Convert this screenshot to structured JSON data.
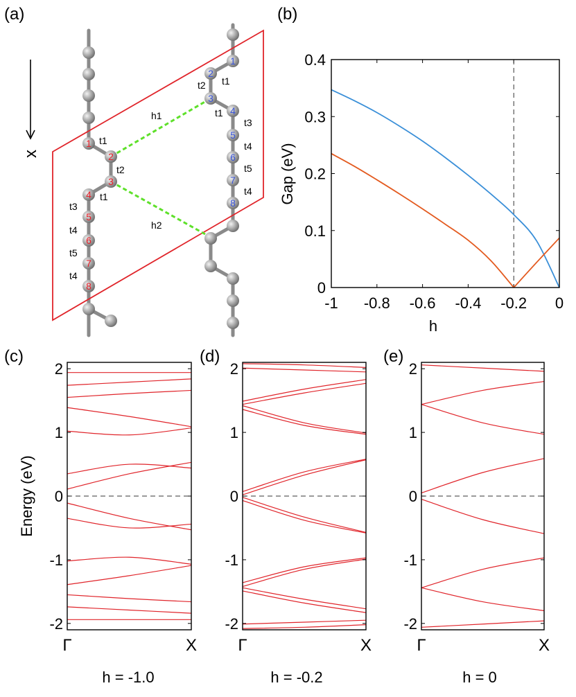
{
  "panels": {
    "a": {
      "label": "(a)",
      "axis_label": "x",
      "red_sites": [
        "1",
        "2",
        "3",
        "4",
        "5",
        "6",
        "7",
        "8"
      ],
      "blue_sites": [
        "1",
        "2",
        "3",
        "4",
        "5",
        "6",
        "7",
        "8"
      ],
      "hop_labels": {
        "red_t1a": "t1",
        "red_t2": "t2",
        "red_t1b": "t1",
        "red_t3": "t3",
        "red_t4a": "t4",
        "red_t5": "t5",
        "red_t4b": "t4",
        "blue_t1a": "t1",
        "blue_t2": "t2",
        "blue_t1b": "t1",
        "blue_t3": "t3",
        "blue_t4a": "t4",
        "blue_t5": "t5",
        "blue_t4b": "t4"
      },
      "interchain": {
        "h1": "h1",
        "h2": "h2"
      },
      "colors": {
        "red_site": "#e8202a",
        "blue_site": "#3a55d8",
        "plane": "#e0242a",
        "bond_dash": "#5ee02a",
        "atom": "#9a9a9a"
      }
    },
    "b": {
      "label": "(b)",
      "xlabel": "h",
      "ylabel": "Gap (eV)",
      "xticks": [
        "-1",
        "-0.8",
        "-0.6",
        "-0.4",
        "-0.2",
        "0"
      ],
      "yticks": [
        "0",
        "0.1",
        "0.2",
        "0.3",
        "0.4"
      ]
    },
    "c": {
      "label": "(c)",
      "caption": "h = -1.0"
    },
    "d": {
      "label": "(d)",
      "caption": "h = -0.2"
    },
    "e": {
      "label": "(e)",
      "caption": "h = 0"
    },
    "band_axes": {
      "ylabel": "Energy (eV)",
      "yticks": [
        "-2",
        "-1",
        "0",
        "1",
        "2"
      ],
      "xticks": [
        "Γ",
        "X"
      ]
    }
  },
  "chart_data": [
    {
      "type": "line",
      "panel": "b",
      "title": "",
      "xlabel": "h",
      "ylabel": "Gap (eV)",
      "xlim": [
        -1,
        0
      ],
      "ylim": [
        0,
        0.4
      ],
      "vline_x": -0.2,
      "series": [
        {
          "name": "gap-blue",
          "color": "#3a8fd8",
          "x": [
            -1,
            -0.9,
            -0.8,
            -0.7,
            -0.6,
            -0.5,
            -0.4,
            -0.3,
            -0.2,
            -0.1,
            0
          ],
          "y": [
            0.347,
            0.328,
            0.307,
            0.283,
            0.257,
            0.228,
            0.197,
            0.164,
            0.128,
            0.082,
            0.0
          ]
        },
        {
          "name": "gap-orange",
          "color": "#e35a1f",
          "x": [
            -1,
            -0.9,
            -0.8,
            -0.7,
            -0.6,
            -0.5,
            -0.4,
            -0.3,
            -0.2,
            -0.1,
            0
          ],
          "y": [
            0.235,
            0.213,
            0.189,
            0.164,
            0.138,
            0.111,
            0.083,
            0.047,
            0.0,
            0.044,
            0.087
          ]
        }
      ]
    },
    {
      "type": "line",
      "panel": "c",
      "caption": "h = -1.0",
      "ylabel": "Energy (eV)",
      "ylim": [
        -2.1,
        2.1
      ],
      "categories": [
        "Γ",
        "X"
      ],
      "bands": [
        [
          1.94,
          1.94,
          1.94
        ],
        [
          1.74,
          1.79,
          1.84
        ],
        [
          1.55,
          1.61,
          1.66
        ],
        [
          1.39,
          1.25,
          1.09
        ],
        [
          1.02,
          0.96,
          1.07
        ],
        [
          0.35,
          0.5,
          0.44
        ],
        [
          0.11,
          0.35,
          0.53
        ],
        [
          -0.11,
          -0.35,
          -0.53
        ],
        [
          -0.35,
          -0.5,
          -0.44
        ],
        [
          -1.02,
          -0.96,
          -1.07
        ],
        [
          -1.39,
          -1.25,
          -1.09
        ],
        [
          -1.55,
          -1.61,
          -1.66
        ],
        [
          -1.74,
          -1.79,
          -1.84
        ],
        [
          -1.94,
          -1.94,
          -1.94
        ]
      ]
    },
    {
      "type": "line",
      "panel": "d",
      "caption": "h = -0.2",
      "ylabel": "Energy (eV)",
      "ylim": [
        -2.1,
        2.1
      ],
      "categories": [
        "Γ",
        "X"
      ],
      "bands": [
        [
          2.08,
          2.06,
          2.02
        ],
        [
          2.01,
          1.98,
          1.95
        ],
        [
          1.49,
          1.68,
          1.83
        ],
        [
          1.44,
          1.62,
          1.77
        ],
        [
          1.42,
          1.15,
          0.99
        ],
        [
          1.36,
          1.11,
          0.97
        ],
        [
          0.07,
          0.38,
          0.58
        ],
        [
          0.02,
          0.33,
          0.57
        ],
        [
          -0.02,
          -0.33,
          -0.57
        ],
        [
          -0.07,
          -0.38,
          -0.58
        ],
        [
          -1.36,
          -1.11,
          -0.97
        ],
        [
          -1.42,
          -1.15,
          -0.99
        ],
        [
          -1.44,
          -1.62,
          -1.77
        ],
        [
          -1.49,
          -1.68,
          -1.83
        ],
        [
          -2.01,
          -1.98,
          -1.95
        ],
        [
          -2.08,
          -2.06,
          -2.02
        ]
      ]
    },
    {
      "type": "line",
      "panel": "e",
      "caption": "h = 0",
      "ylabel": "Energy (eV)",
      "ylim": [
        -2.1,
        2.1
      ],
      "categories": [
        "Γ",
        "X"
      ],
      "bands": [
        [
          2.06,
          2.01,
          1.96
        ],
        [
          1.44,
          1.66,
          1.8
        ],
        [
          1.44,
          1.15,
          0.97
        ],
        [
          0.05,
          0.37,
          0.59
        ],
        [
          -0.05,
          -0.37,
          -0.59
        ],
        [
          -1.44,
          -1.15,
          -0.97
        ],
        [
          -1.44,
          -1.66,
          -1.8
        ],
        [
          -2.06,
          -2.01,
          -1.96
        ]
      ]
    }
  ]
}
